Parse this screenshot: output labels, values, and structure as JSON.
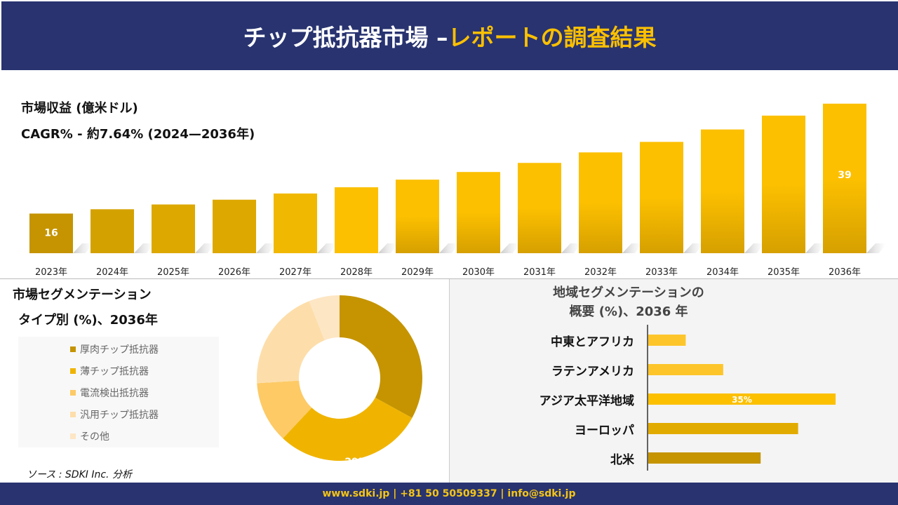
{
  "header": {
    "title_main": "チップ抵抗器市場 –",
    "title_accent": "レポートの調査結果"
  },
  "revenue": {
    "title": "市場収益 (億米ドル)",
    "cagr": "CAGR% - 約7.64% (2024—2036年)"
  },
  "segment": {
    "title": "市場セグメンテーション",
    "subtitle": "タイプ別 (%)、2036年"
  },
  "region": {
    "title_line1": "地域セグメンテーションの",
    "title_line2": "概要 (%)、2036 年"
  },
  "source": "ソース : SDKI Inc. 分析",
  "footer": "www.sdki.jp | +81 50 50509337 | info@sdki.jp",
  "chart_data": [
    {
      "type": "bar",
      "title": "市場収益 (億米ドル)",
      "categories": [
        "2023年",
        "2024年",
        "2025年",
        "2026年",
        "2027年",
        "2028年",
        "2029年",
        "2030年",
        "2031年",
        "2032年",
        "2033年",
        "2034年",
        "2035年",
        "2036年"
      ],
      "values": [
        16,
        16.9,
        17.9,
        18.9,
        20.2,
        21.5,
        23.1,
        24.7,
        26.6,
        28.8,
        31.0,
        33.6,
        36.5,
        39
      ],
      "data_labels": {
        "0": "16",
        "13": "39"
      },
      "ylim": [
        7.7,
        40
      ],
      "grid": false,
      "colors": [
        "#c59400",
        "#d4a200",
        "#dda800",
        "#dda800",
        "#f0b800",
        "#fcc000",
        "#fcc000",
        "#fcc000",
        "#fcc000",
        "#fcc000",
        "#fcc000",
        "#fcc000",
        "#fcc000",
        "#fcc000"
      ]
    },
    {
      "type": "pie",
      "title": "タイプ別 (%)、2036年",
      "donut": true,
      "labels": [
        "厚肉チップ抵抗器",
        "薄チップ抵抗器",
        "電流検出抵抗器",
        "汎用チップ抵抗器",
        "その他"
      ],
      "values": [
        33,
        29,
        12,
        20,
        6
      ],
      "data_labels": {
        "1": "29%"
      },
      "colors": [
        "#c59400",
        "#f0b400",
        "#fdca66",
        "#fddeaa",
        "#fde6c4"
      ],
      "legend": "left"
    },
    {
      "type": "bar",
      "orientation": "horizontal",
      "title": "地域セグメンテーションの 概要 (%)、2036 年",
      "categories": [
        "中東とアフリカ",
        "ラテンアメリカ",
        "アジア太平洋地域",
        "ヨーロッパ",
        "北米"
      ],
      "values": [
        7,
        14,
        35,
        28,
        21
      ],
      "data_labels": {
        "2": "35%"
      },
      "colors": [
        "#fdc52a",
        "#fdc52a",
        "#fcc000",
        "#e2ab00",
        "#c59400"
      ]
    }
  ]
}
